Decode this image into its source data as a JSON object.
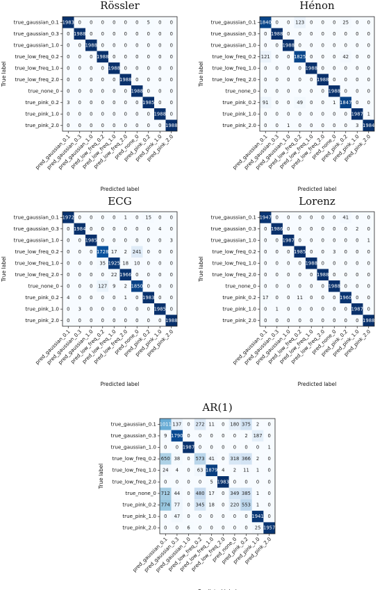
{
  "colormap": {
    "low": "#f7fbff",
    "high": "#08306b",
    "text_dark": "#222222",
    "text_light": "#ffffff"
  },
  "chart_data": [
    {
      "type": "heatmap",
      "title": "Rössler",
      "xlabel": "Predicted label",
      "ylabel": "True label",
      "x_categories": [
        "pred_gaussian_0.1",
        "pred_gaussian_0.3",
        "pred_gaussian_1.0",
        "pred_low_freq_0.2",
        "pred_low_freq_1.0",
        "pred_low_freq_2.0",
        "pred_none_0",
        "pred_pink_0.2",
        "pred_pink_1.0",
        "pred_pink_2.0"
      ],
      "y_categories": [
        "true_gaussian_0.1",
        "true_gaussian_0.3",
        "true_gaussian_1.0",
        "true_low_freq_0.2",
        "true_low_freq_1.0",
        "true_low_freq_2.0",
        "true_none_0",
        "true_pink_0.2",
        "true_pink_1.0",
        "true_pink_2.0"
      ],
      "values": [
        [
          1983,
          0,
          0,
          0,
          0,
          0,
          0,
          5,
          0,
          0
        ],
        [
          0,
          1988,
          0,
          0,
          0,
          0,
          0,
          0,
          0,
          0
        ],
        [
          0,
          0,
          1988,
          0,
          0,
          0,
          0,
          0,
          0,
          0
        ],
        [
          0,
          0,
          0,
          1988,
          0,
          0,
          0,
          0,
          0,
          0
        ],
        [
          0,
          0,
          0,
          0,
          1988,
          0,
          0,
          0,
          0,
          0
        ],
        [
          0,
          0,
          0,
          0,
          0,
          1988,
          0,
          0,
          0,
          0
        ],
        [
          0,
          0,
          0,
          0,
          0,
          0,
          1988,
          0,
          0,
          0
        ],
        [
          3,
          0,
          0,
          0,
          0,
          0,
          0,
          1985,
          0,
          0
        ],
        [
          0,
          0,
          0,
          0,
          0,
          0,
          0,
          0,
          1988,
          0
        ],
        [
          0,
          0,
          0,
          0,
          0,
          0,
          0,
          0,
          0,
          1988
        ]
      ]
    },
    {
      "type": "heatmap",
      "title": "Hénon",
      "xlabel": "Predicted label",
      "ylabel": "True label",
      "x_categories": [
        "pred_gaussian_0.1",
        "pred_gaussian_0.3",
        "pred_gaussian_1.0",
        "pred_low_freq_0.2",
        "pred_low_freq_1.0",
        "pred_low_freq_2.0",
        "pred_none_0",
        "pred_pink_0.2",
        "pred_pink_1.0",
        "pred_pink_2.0"
      ],
      "y_categories": [
        "true_gaussian_0.1",
        "true_gaussian_0.3",
        "true_gaussian_1.0",
        "true_low_freq_0.2",
        "true_low_freq_1.0",
        "true_low_freq_2.0",
        "true_none_0",
        "true_pink_0.2",
        "true_pink_1.0",
        "true_pink_2.0"
      ],
      "values": [
        [
          1840,
          0,
          0,
          123,
          0,
          0,
          0,
          25,
          0,
          0
        ],
        [
          0,
          1988,
          0,
          0,
          0,
          0,
          0,
          0,
          0,
          0
        ],
        [
          0,
          0,
          1988,
          0,
          0,
          0,
          0,
          0,
          0,
          0
        ],
        [
          121,
          0,
          0,
          1825,
          0,
          0,
          0,
          42,
          0,
          0
        ],
        [
          0,
          0,
          0,
          0,
          1988,
          0,
          0,
          0,
          0,
          0
        ],
        [
          0,
          0,
          0,
          0,
          0,
          1988,
          0,
          0,
          0,
          0
        ],
        [
          0,
          0,
          0,
          0,
          0,
          0,
          1988,
          0,
          0,
          0
        ],
        [
          91,
          0,
          0,
          49,
          0,
          0,
          1,
          1847,
          0,
          0
        ],
        [
          0,
          0,
          0,
          0,
          0,
          0,
          0,
          0,
          1987,
          1
        ],
        [
          0,
          0,
          1,
          0,
          0,
          0,
          0,
          0,
          3,
          1984
        ]
      ]
    },
    {
      "type": "heatmap",
      "title": "ECG",
      "xlabel": "Predicted label",
      "ylabel": "True label",
      "x_categories": [
        "pred_gaussian_0.1",
        "pred_gaussian_0.3",
        "pred_gaussian_1.0",
        "pred_low_freq_0.2",
        "pred_low_freq_1.0",
        "pred_low_freq_2.0",
        "pred_none_0",
        "pred_pink_0.2",
        "pred_pink_1.0",
        "pred_pink_2.0"
      ],
      "y_categories": [
        "true_gaussian_0.1",
        "true_gaussian_0.3",
        "true_gaussian_1.0",
        "true_low_freq_0.2",
        "true_low_freq_1.0",
        "true_low_freq_2.0",
        "true_none_0",
        "true_pink_0.2",
        "true_pink_1.0",
        "true_pink_2.0"
      ],
      "values": [
        [
          1972,
          0,
          0,
          0,
          0,
          1,
          0,
          15,
          0,
          0
        ],
        [
          0,
          1984,
          0,
          0,
          0,
          0,
          0,
          0,
          4,
          0
        ],
        [
          0,
          0,
          1985,
          0,
          0,
          0,
          0,
          0,
          0,
          3
        ],
        [
          0,
          0,
          0,
          1728,
          17,
          2,
          241,
          0,
          0,
          0
        ],
        [
          0,
          0,
          0,
          35,
          1925,
          18,
          10,
          0,
          0,
          0
        ],
        [
          0,
          0,
          0,
          0,
          22,
          1966,
          0,
          0,
          0,
          0
        ],
        [
          0,
          0,
          0,
          127,
          9,
          2,
          1850,
          0,
          0,
          0
        ],
        [
          4,
          0,
          0,
          0,
          0,
          1,
          0,
          1983,
          0,
          0
        ],
        [
          0,
          3,
          0,
          0,
          0,
          0,
          0,
          0,
          1985,
          0
        ],
        [
          0,
          0,
          0,
          0,
          0,
          0,
          0,
          0,
          0,
          1988
        ]
      ]
    },
    {
      "type": "heatmap",
      "title": "Lorenz",
      "xlabel": "Predicted label",
      "ylabel": "True label",
      "x_categories": [
        "pred_gaussian_0.1",
        "pred_gaussian_0.3",
        "pred_gaussian_1.0",
        "pred_low_freq_0.2",
        "pred_low_freq_1.0",
        "pred_low_freq_2.0",
        "pred_none_0",
        "pred_pink_0.2",
        "pred_pink_1.0",
        "pred_pink_2.0"
      ],
      "y_categories": [
        "true_gaussian_0.1",
        "true_gaussian_0.3",
        "true_gaussian_1.0",
        "true_low_freq_0.2",
        "true_low_freq_1.0",
        "true_low_freq_2.0",
        "true_none_0",
        "true_pink_0.2",
        "true_pink_1.0",
        "true_pink_2.0"
      ],
      "values": [
        [
          1947,
          0,
          0,
          0,
          0,
          0,
          0,
          41,
          0,
          0
        ],
        [
          0,
          1986,
          0,
          0,
          0,
          0,
          0,
          0,
          2,
          0
        ],
        [
          0,
          0,
          1987,
          0,
          0,
          0,
          0,
          0,
          0,
          1
        ],
        [
          0,
          0,
          0,
          1985,
          0,
          0,
          3,
          0,
          0,
          0
        ],
        [
          0,
          0,
          0,
          0,
          1988,
          0,
          0,
          0,
          0,
          0
        ],
        [
          0,
          0,
          0,
          0,
          0,
          1988,
          0,
          0,
          0,
          0
        ],
        [
          0,
          0,
          0,
          0,
          0,
          0,
          1988,
          0,
          0,
          0
        ],
        [
          17,
          0,
          0,
          11,
          0,
          0,
          0,
          1960,
          0,
          0
        ],
        [
          0,
          1,
          0,
          0,
          0,
          0,
          0,
          0,
          1987,
          0
        ],
        [
          0,
          0,
          0,
          0,
          0,
          0,
          0,
          0,
          0,
          1988
        ]
      ]
    },
    {
      "type": "heatmap",
      "title": "AR(1)",
      "xlabel": "Predicted label",
      "ylabel": "True label",
      "x_categories": [
        "pred_gaussian_0.1",
        "pred_gaussian_0.3",
        "pred_gaussian_1.0",
        "pred_low_freq_0.2",
        "pred_low_freq_1.0",
        "pred_low_freq_2.0",
        "pred_none_0",
        "pred_pink_0.2",
        "pred_pink_1.0",
        "pred_pink_2.0"
      ],
      "y_categories": [
        "true_gaussian_0.1",
        "true_gaussian_0.3",
        "true_gaussian_1.0",
        "true_low_freq_0.2",
        "true_low_freq_1.0",
        "true_low_freq_2.0",
        "true_none_0",
        "true_pink_0.2",
        "true_pink_1.0",
        "true_pink_2.0"
      ],
      "values": [
        [
          1011,
          137,
          0,
          272,
          11,
          0,
          180,
          375,
          2,
          0
        ],
        [
          9,
          1790,
          0,
          0,
          0,
          0,
          0,
          2,
          187,
          0
        ],
        [
          0,
          0,
          1987,
          0,
          0,
          0,
          0,
          0,
          0,
          1
        ],
        [
          650,
          38,
          0,
          573,
          41,
          0,
          318,
          366,
          2,
          0
        ],
        [
          24,
          4,
          0,
          63,
          1879,
          4,
          2,
          11,
          1,
          0
        ],
        [
          0,
          0,
          0,
          0,
          5,
          1983,
          0,
          0,
          0,
          0
        ],
        [
          712,
          44,
          0,
          480,
          17,
          0,
          349,
          385,
          1,
          0
        ],
        [
          774,
          77,
          0,
          345,
          18,
          0,
          220,
          553,
          1,
          0
        ],
        [
          0,
          47,
          0,
          0,
          0,
          0,
          0,
          0,
          1941,
          0
        ],
        [
          0,
          0,
          6,
          0,
          0,
          0,
          0,
          0,
          25,
          1957
        ]
      ]
    }
  ]
}
